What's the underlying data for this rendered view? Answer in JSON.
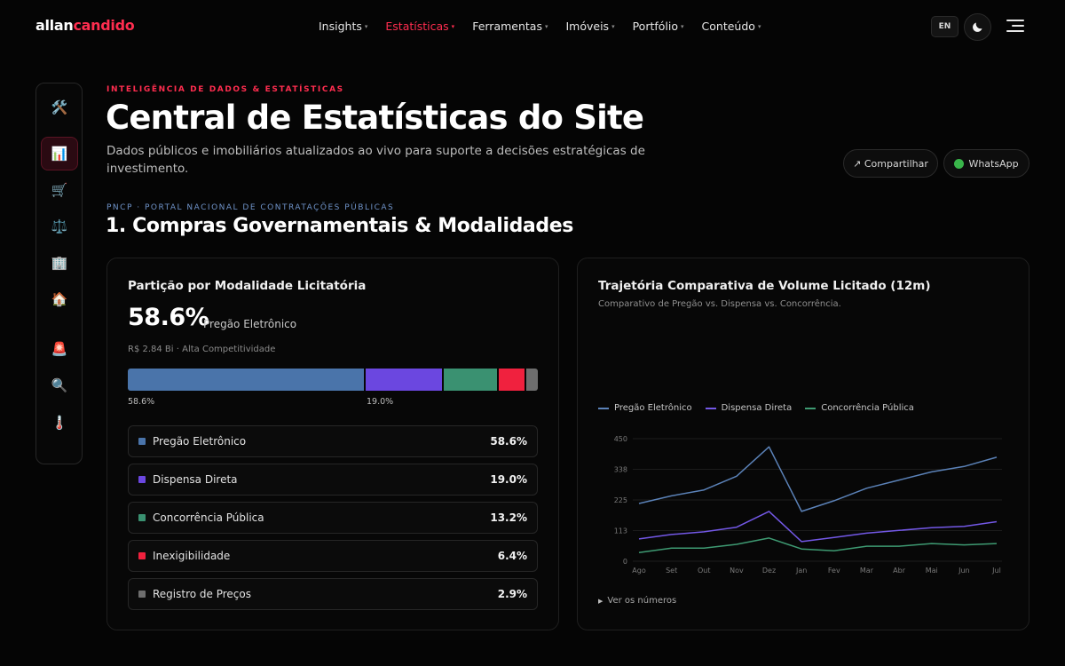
{
  "nav": {
    "logo_a": "allan",
    "logo_b": "candido",
    "items": [
      {
        "label": "Insights",
        "active": false
      },
      {
        "label": "Estatísticas",
        "active": true
      },
      {
        "label": "Ferramentas",
        "active": false
      },
      {
        "label": "Imóveis",
        "active": false
      },
      {
        "label": "Portfólio",
        "active": false
      },
      {
        "label": "Conteúdo",
        "active": false
      }
    ],
    "lang": "EN",
    "theme_icon": "moon-icon",
    "menu_icon": "hamburger-icon"
  },
  "rail": {
    "items": [
      {
        "icon": "🛠️",
        "name": "tools-icon",
        "active": false
      },
      {
        "icon": "📊",
        "name": "bar-chart-icon",
        "active": true
      },
      {
        "icon": "🛒",
        "name": "shopping-cart-icon",
        "active": false
      },
      {
        "icon": "⚖️",
        "name": "scales-icon",
        "active": false
      },
      {
        "icon": "🏢",
        "name": "office-building-icon",
        "active": false
      },
      {
        "icon": "🏠",
        "name": "house-icon",
        "active": false
      },
      {
        "icon": "🚨",
        "name": "siren-icon",
        "active": false
      },
      {
        "icon": "🔍",
        "name": "magnifier-icon",
        "active": false
      },
      {
        "icon": "🌡️",
        "name": "thermometer-icon",
        "active": false
      }
    ]
  },
  "header": {
    "eyebrow": "INTELIGÊNCIA DE DADOS & ESTATÍSTICAS",
    "title": "Central de Estatísticas do Site",
    "subtitle": "Dados públicos e imobiliários atualizados ao vivo para suporte a decisões estratégicas de investimento.",
    "share_label": "↗ Compartilhar",
    "whatsapp_label": "WhatsApp"
  },
  "section": {
    "eyebrow": "PNCP · PORTAL NACIONAL DE CONTRATAÇÕES PÚBLICAS",
    "title": "1. Compras Governamentais & Modalidades"
  },
  "modal_card": {
    "title": "Partição por Modalidade Licitatória",
    "big_pct": "58.6%",
    "big_label": "Pregão Eletrônico",
    "meta": "R$ 2.84 Bi · Alta Competitividade",
    "stack_labels": [
      "58.6%",
      "19.0%"
    ],
    "rows": [
      {
        "name": "Pregão Eletrônico",
        "value": "58.6%",
        "pct": 58.6,
        "color": "#4a74aa"
      },
      {
        "name": "Dispensa Direta",
        "value": "19.0%",
        "pct": 19.0,
        "color": "#6b47e0"
      },
      {
        "name": "Concorrência Pública",
        "value": "13.2%",
        "pct": 13.2,
        "color": "#3a9171"
      },
      {
        "name": "Inexigibilidade",
        "value": "6.4%",
        "pct": 6.4,
        "color": "#f0213e"
      },
      {
        "name": "Registro de Preços",
        "value": "2.9%",
        "pct": 2.9,
        "color": "#6e6e6e"
      }
    ]
  },
  "trend_card": {
    "title": "Trajetória Comparativa de Volume Licitado (12m)",
    "subtitle": "Comparativo de Pregão vs. Dispensa vs. Concorrência.",
    "toggle_label": "Ver os números"
  },
  "chart_data": {
    "type": "line",
    "categories": [
      "Ago",
      "Set",
      "Out",
      "Nov",
      "Dez",
      "Jan",
      "Fev",
      "Mar",
      "Abr",
      "Mai",
      "Jun",
      "Jul"
    ],
    "y_ticks": [
      "0",
      "113",
      "225",
      "338",
      "450"
    ],
    "ylim": [
      0,
      450
    ],
    "legend_position": "top-left",
    "grid": true,
    "series": [
      {
        "name": "Pregão Eletrônico",
        "color": "#5b82b8",
        "values": [
          212,
          240,
          262,
          312,
          420,
          183,
          222,
          268,
          298,
          328,
          348,
          382
        ]
      },
      {
        "name": "Dispensa Direta",
        "color": "#7358e6",
        "values": [
          82,
          98,
          108,
          125,
          183,
          72,
          87,
          103,
          113,
          123,
          128,
          145
        ]
      },
      {
        "name": "Concorrência Pública",
        "color": "#3e9a72",
        "values": [
          32,
          48,
          48,
          62,
          85,
          45,
          38,
          55,
          55,
          65,
          60,
          65
        ]
      }
    ]
  }
}
